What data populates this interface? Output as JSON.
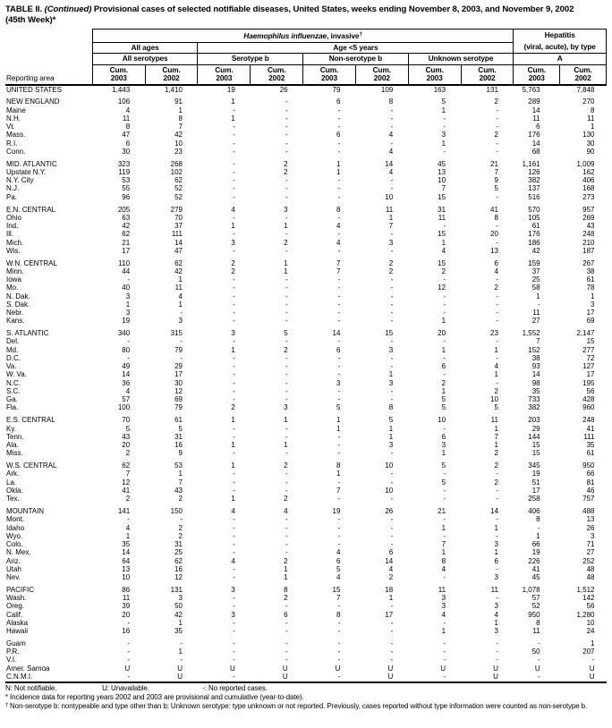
{
  "title": {
    "part1": "TABLE II. ",
    "part2_italic": "(Continued)",
    "part3": " Provisional cases of selected notifiable diseases, United States, weeks ending November 8, 2003, and November 9, 2002",
    "line2": "(45th Week)*"
  },
  "header": {
    "reporting_area": "Reporting area",
    "disease_group": {
      "italic": "Haemophilus influenzae",
      "rest": ", invasive",
      "dagger": "†"
    },
    "hepatitis_group": {
      "line1": "Hepatitis",
      "line2": "(viral, acute), by type"
    },
    "age_groups": {
      "all_ages": "All ages",
      "under5": "Age <5 years"
    },
    "serotype_cols": [
      "All serotypes",
      "Serotype b",
      "Non-serotype b",
      "Unknown serotype",
      "A"
    ],
    "cum_label": "Cum.",
    "years": [
      "2003",
      "2002"
    ]
  },
  "table_rows": [
    {
      "area": "UNITED STATES",
      "type": "total",
      "group_start": false,
      "values": [
        "1,443",
        "1,410",
        "19",
        "26",
        "79",
        "109",
        "163",
        "131",
        "5,763",
        "7,848"
      ]
    },
    {
      "area": "NEW ENGLAND",
      "type": "region",
      "group_start": true,
      "values": [
        "106",
        "91",
        "1",
        "-",
        "6",
        "8",
        "5",
        "2",
        "289",
        "270"
      ]
    },
    {
      "area": "Maine",
      "type": "state",
      "group_start": false,
      "values": [
        "4",
        "1",
        "-",
        "-",
        "-",
        "-",
        "1",
        "-",
        "14",
        "8"
      ]
    },
    {
      "area": "N.H.",
      "type": "state",
      "group_start": false,
      "values": [
        "11",
        "8",
        "1",
        "-",
        "-",
        "-",
        "-",
        "-",
        "11",
        "11"
      ]
    },
    {
      "area": "Vt.",
      "type": "state",
      "group_start": false,
      "values": [
        "8",
        "7",
        "-",
        "-",
        "-",
        "-",
        "-",
        "-",
        "6",
        "1"
      ]
    },
    {
      "area": "Mass.",
      "type": "state",
      "group_start": false,
      "values": [
        "47",
        "42",
        "-",
        "-",
        "6",
        "4",
        "3",
        "2",
        "176",
        "130"
      ]
    },
    {
      "area": "R.I.",
      "type": "state",
      "group_start": false,
      "values": [
        "6",
        "10",
        "-",
        "-",
        "-",
        "-",
        "1",
        "-",
        "14",
        "30"
      ]
    },
    {
      "area": "Conn.",
      "type": "state",
      "group_start": false,
      "values": [
        "30",
        "23",
        "-",
        "-",
        "-",
        "4",
        "-",
        "-",
        "68",
        "90"
      ]
    },
    {
      "area": "MID. ATLANTIC",
      "type": "region",
      "group_start": true,
      "values": [
        "323",
        "268",
        "-",
        "2",
        "1",
        "14",
        "45",
        "21",
        "1,161",
        "1,009"
      ]
    },
    {
      "area": "Upstate N.Y.",
      "type": "state",
      "group_start": false,
      "values": [
        "119",
        "102",
        "-",
        "2",
        "1",
        "4",
        "13",
        "7",
        "126",
        "162"
      ]
    },
    {
      "area": "N.Y. City",
      "type": "state",
      "group_start": false,
      "values": [
        "53",
        "62",
        "-",
        "-",
        "-",
        "-",
        "10",
        "9",
        "382",
        "406"
      ]
    },
    {
      "area": "N.J.",
      "type": "state",
      "group_start": false,
      "values": [
        "55",
        "52",
        "-",
        "-",
        "-",
        "-",
        "7",
        "5",
        "137",
        "168"
      ]
    },
    {
      "area": "Pa.",
      "type": "state",
      "group_start": false,
      "values": [
        "96",
        "52",
        "-",
        "-",
        "-",
        "10",
        "15",
        "-",
        "516",
        "273"
      ]
    },
    {
      "area": "E.N. CENTRAL",
      "type": "region",
      "group_start": true,
      "values": [
        "205",
        "279",
        "4",
        "3",
        "8",
        "11",
        "31",
        "41",
        "570",
        "957"
      ]
    },
    {
      "area": "Ohio",
      "type": "state",
      "group_start": false,
      "values": [
        "63",
        "70",
        "-",
        "-",
        "-",
        "1",
        "11",
        "8",
        "105",
        "269"
      ]
    },
    {
      "area": "Ind.",
      "type": "state",
      "group_start": false,
      "values": [
        "42",
        "37",
        "1",
        "1",
        "4",
        "7",
        "-",
        "-",
        "61",
        "43"
      ]
    },
    {
      "area": "Ill.",
      "type": "state",
      "group_start": false,
      "values": [
        "62",
        "111",
        "-",
        "-",
        "-",
        "-",
        "15",
        "20",
        "176",
        "248"
      ]
    },
    {
      "area": "Mich.",
      "type": "state",
      "group_start": false,
      "values": [
        "21",
        "14",
        "3",
        "2",
        "4",
        "3",
        "1",
        "-",
        "186",
        "210"
      ]
    },
    {
      "area": "Wis.",
      "type": "state",
      "group_start": false,
      "values": [
        "17",
        "47",
        "-",
        "-",
        "-",
        "-",
        "4",
        "13",
        "42",
        "187"
      ]
    },
    {
      "area": "W.N. CENTRAL",
      "type": "region",
      "group_start": true,
      "values": [
        "110",
        "62",
        "2",
        "1",
        "7",
        "2",
        "15",
        "6",
        "159",
        "267"
      ]
    },
    {
      "area": "Minn.",
      "type": "state",
      "group_start": false,
      "values": [
        "44",
        "42",
        "2",
        "1",
        "7",
        "2",
        "2",
        "4",
        "37",
        "38"
      ]
    },
    {
      "area": "Iowa",
      "type": "state",
      "group_start": false,
      "values": [
        "-",
        "1",
        "-",
        "-",
        "-",
        "-",
        "-",
        "-",
        "25",
        "61"
      ]
    },
    {
      "area": "Mo.",
      "type": "state",
      "group_start": false,
      "values": [
        "40",
        "11",
        "-",
        "-",
        "-",
        "-",
        "12",
        "2",
        "58",
        "78"
      ]
    },
    {
      "area": "N. Dak.",
      "type": "state",
      "group_start": false,
      "values": [
        "3",
        "4",
        "-",
        "-",
        "-",
        "-",
        "-",
        "-",
        "1",
        "1"
      ]
    },
    {
      "area": "S. Dak.",
      "type": "state",
      "group_start": false,
      "values": [
        "1",
        "1",
        "-",
        "-",
        "-",
        "-",
        "-",
        "-",
        "-",
        "3"
      ]
    },
    {
      "area": "Nebr.",
      "type": "state",
      "group_start": false,
      "values": [
        "3",
        "-",
        "-",
        "-",
        "-",
        "-",
        "-",
        "-",
        "11",
        "17"
      ]
    },
    {
      "area": "Kans.",
      "type": "state",
      "group_start": false,
      "values": [
        "19",
        "3",
        "-",
        "-",
        "-",
        "-",
        "1",
        "-",
        "27",
        "69"
      ]
    },
    {
      "area": "S. ATLANTIC",
      "type": "region",
      "group_start": true,
      "values": [
        "340",
        "315",
        "3",
        "5",
        "14",
        "15",
        "20",
        "23",
        "1,552",
        "2,147"
      ]
    },
    {
      "area": "Del.",
      "type": "state",
      "group_start": false,
      "values": [
        "-",
        "-",
        "-",
        "-",
        "-",
        "-",
        "-",
        "-",
        "7",
        "15"
      ]
    },
    {
      "area": "Md.",
      "type": "state",
      "group_start": false,
      "values": [
        "80",
        "79",
        "1",
        "2",
        "6",
        "3",
        "1",
        "1",
        "152",
        "277"
      ]
    },
    {
      "area": "D.C.",
      "type": "state",
      "group_start": false,
      "values": [
        "-",
        "-",
        "-",
        "-",
        "-",
        "-",
        "-",
        "-",
        "38",
        "72"
      ]
    },
    {
      "area": "Va.",
      "type": "state",
      "group_start": false,
      "values": [
        "49",
        "29",
        "-",
        "-",
        "-",
        "-",
        "6",
        "4",
        "93",
        "127"
      ]
    },
    {
      "area": "W. Va.",
      "type": "state",
      "group_start": false,
      "values": [
        "14",
        "17",
        "-",
        "-",
        "-",
        "1",
        "-",
        "1",
        "14",
        "17"
      ]
    },
    {
      "area": "N.C.",
      "type": "state",
      "group_start": false,
      "values": [
        "36",
        "30",
        "-",
        "-",
        "3",
        "3",
        "2",
        "-",
        "98",
        "195"
      ]
    },
    {
      "area": "S.C.",
      "type": "state",
      "group_start": false,
      "values": [
        "4",
        "12",
        "-",
        "-",
        "-",
        "-",
        "1",
        "2",
        "35",
        "56"
      ]
    },
    {
      "area": "Ga.",
      "type": "state",
      "group_start": false,
      "values": [
        "57",
        "69",
        "-",
        "-",
        "-",
        "-",
        "5",
        "10",
        "733",
        "428"
      ]
    },
    {
      "area": "Fla.",
      "type": "state",
      "group_start": false,
      "values": [
        "100",
        "79",
        "2",
        "3",
        "5",
        "8",
        "5",
        "5",
        "382",
        "960"
      ]
    },
    {
      "area": "E.S. CENTRAL",
      "type": "region",
      "group_start": true,
      "values": [
        "70",
        "61",
        "1",
        "1",
        "1",
        "5",
        "10",
        "11",
        "203",
        "248"
      ]
    },
    {
      "area": "Ky.",
      "type": "state",
      "group_start": false,
      "values": [
        "5",
        "5",
        "-",
        "-",
        "1",
        "1",
        "-",
        "1",
        "29",
        "41"
      ]
    },
    {
      "area": "Tenn.",
      "type": "state",
      "group_start": false,
      "values": [
        "43",
        "31",
        "-",
        "-",
        "-",
        "1",
        "6",
        "7",
        "144",
        "111"
      ]
    },
    {
      "area": "Ala.",
      "type": "state",
      "group_start": false,
      "values": [
        "20",
        "16",
        "1",
        "1",
        "-",
        "3",
        "3",
        "1",
        "15",
        "35"
      ]
    },
    {
      "area": "Miss.",
      "type": "state",
      "group_start": false,
      "values": [
        "2",
        "9",
        "-",
        "-",
        "-",
        "-",
        "1",
        "2",
        "15",
        "61"
      ]
    },
    {
      "area": "W.S. CENTRAL",
      "type": "region",
      "group_start": true,
      "values": [
        "62",
        "53",
        "1",
        "2",
        "8",
        "10",
        "5",
        "2",
        "345",
        "950"
      ]
    },
    {
      "area": "Ark.",
      "type": "state",
      "group_start": false,
      "values": [
        "7",
        "1",
        "-",
        "-",
        "1",
        "-",
        "-",
        "-",
        "19",
        "66"
      ]
    },
    {
      "area": "La.",
      "type": "state",
      "group_start": false,
      "values": [
        "12",
        "7",
        "-",
        "-",
        "-",
        "-",
        "5",
        "2",
        "51",
        "81"
      ]
    },
    {
      "area": "Okla.",
      "type": "state",
      "group_start": false,
      "values": [
        "41",
        "43",
        "-",
        "-",
        "7",
        "10",
        "-",
        "-",
        "17",
        "46"
      ]
    },
    {
      "area": "Tex.",
      "type": "state",
      "group_start": false,
      "values": [
        "2",
        "2",
        "1",
        "2",
        "-",
        "-",
        "-",
        "-",
        "258",
        "757"
      ]
    },
    {
      "area": "MOUNTAIN",
      "type": "region",
      "group_start": true,
      "values": [
        "141",
        "150",
        "4",
        "4",
        "19",
        "26",
        "21",
        "14",
        "406",
        "488"
      ]
    },
    {
      "area": "Mont.",
      "type": "state",
      "group_start": false,
      "values": [
        "-",
        "-",
        "-",
        "-",
        "-",
        "-",
        "-",
        "-",
        "8",
        "13"
      ]
    },
    {
      "area": "Idaho",
      "type": "state",
      "group_start": false,
      "values": [
        "4",
        "2",
        "-",
        "-",
        "-",
        "-",
        "1",
        "1",
        "-",
        "26"
      ]
    },
    {
      "area": "Wyo.",
      "type": "state",
      "group_start": false,
      "values": [
        "1",
        "2",
        "-",
        "-",
        "-",
        "-",
        "-",
        "-",
        "1",
        "3"
      ]
    },
    {
      "area": "Colo.",
      "type": "state",
      "group_start": false,
      "values": [
        "35",
        "31",
        "-",
        "-",
        "-",
        "-",
        "7",
        "3",
        "66",
        "71"
      ]
    },
    {
      "area": "N. Mex.",
      "type": "state",
      "group_start": false,
      "values": [
        "14",
        "25",
        "-",
        "-",
        "4",
        "6",
        "1",
        "1",
        "19",
        "27"
      ]
    },
    {
      "area": "Ariz.",
      "type": "state",
      "group_start": false,
      "values": [
        "64",
        "62",
        "4",
        "2",
        "6",
        "14",
        "8",
        "6",
        "226",
        "252"
      ]
    },
    {
      "area": "Utah",
      "type": "state",
      "group_start": false,
      "values": [
        "13",
        "16",
        "-",
        "1",
        "5",
        "4",
        "4",
        "-",
        "41",
        "48"
      ]
    },
    {
      "area": "Nev.",
      "type": "state",
      "group_start": false,
      "values": [
        "10",
        "12",
        "-",
        "1",
        "4",
        "2",
        "-",
        "3",
        "45",
        "48"
      ]
    },
    {
      "area": "PACIFIC",
      "type": "region",
      "group_start": true,
      "values": [
        "86",
        "131",
        "3",
        "8",
        "15",
        "18",
        "11",
        "11",
        "1,078",
        "1,512"
      ]
    },
    {
      "area": "Wash.",
      "type": "state",
      "group_start": false,
      "values": [
        "11",
        "3",
        "-",
        "2",
        "7",
        "1",
        "3",
        "-",
        "57",
        "142"
      ]
    },
    {
      "area": "Oreg.",
      "type": "state",
      "group_start": false,
      "values": [
        "39",
        "50",
        "-",
        "-",
        "-",
        "-",
        "3",
        "3",
        "52",
        "56"
      ]
    },
    {
      "area": "Calif.",
      "type": "state",
      "group_start": false,
      "values": [
        "20",
        "42",
        "3",
        "6",
        "8",
        "17",
        "4",
        "4",
        "950",
        "1,280"
      ]
    },
    {
      "area": "Alaska",
      "type": "state",
      "group_start": false,
      "values": [
        "-",
        "1",
        "-",
        "-",
        "-",
        "-",
        "-",
        "1",
        "8",
        "10"
      ]
    },
    {
      "area": "Hawaii",
      "type": "state",
      "group_start": false,
      "values": [
        "16",
        "35",
        "-",
        "-",
        "-",
        "-",
        "1",
        "3",
        "11",
        "24"
      ]
    },
    {
      "area": "Guam",
      "type": "territory",
      "group_start": true,
      "values": [
        "-",
        "-",
        "-",
        "-",
        "-",
        "-",
        "-",
        "-",
        "-",
        "1"
      ]
    },
    {
      "area": "P.R.",
      "type": "territory",
      "group_start": false,
      "values": [
        "-",
        "1",
        "-",
        "-",
        "-",
        "-",
        "-",
        "-",
        "50",
        "207"
      ]
    },
    {
      "area": "V.I.",
      "type": "territory",
      "group_start": false,
      "values": [
        "-",
        "-",
        "-",
        "-",
        "-",
        "-",
        "-",
        "-",
        "-",
        "-"
      ]
    },
    {
      "area": "Amer. Samoa",
      "type": "territory",
      "group_start": false,
      "values": [
        "U",
        "U",
        "U",
        "U",
        "U",
        "U",
        "U",
        "U",
        "U",
        "U"
      ]
    },
    {
      "area": "C.N.M.I.",
      "type": "territory",
      "group_start": false,
      "values": [
        "-",
        "U",
        "-",
        "U",
        "-",
        "U",
        "-",
        "U",
        "-",
        "U"
      ]
    }
  ],
  "footnotes": {
    "legend": [
      "N: Not notifiable.",
      "U: Unavailable.",
      "-: No reported cases."
    ],
    "star": {
      "marker": "*",
      "text": "Incidence data for reporting years 2002 and 2003 are provisional and cumulative (year-to-date)."
    },
    "dagger": {
      "marker": "†",
      "text": "Non-serotype b: nontypeable and type other than b; Unknown serotype: type unknown or not reported. Previously, cases reported without type information were counted as non-serotype b."
    }
  }
}
